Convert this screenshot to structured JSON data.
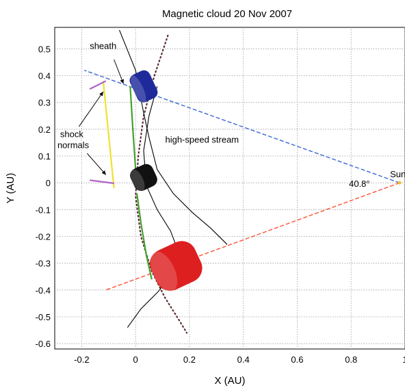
{
  "chart_data": {
    "type": "scatter",
    "title": "Magnetic cloud  20 Nov 2007",
    "xlabel": "X (AU)",
    "ylabel": "Y (AU)",
    "xlim": [
      -0.3,
      1.0
    ],
    "ylim": [
      -0.62,
      0.58
    ],
    "xticks": [
      -0.2,
      0,
      0.2,
      0.4,
      0.6,
      0.8,
      1
    ],
    "xtick_labels": [
      "-0.2",
      "0",
      "0.2",
      "0.4",
      "0.6",
      "0.8",
      "1"
    ],
    "yticks": [
      0.5,
      0.4,
      0.3,
      0.2,
      0.1,
      0,
      -0.1,
      -0.2,
      -0.3,
      -0.4,
      -0.5,
      -0.6
    ],
    "ytick_labels": [
      "0.5",
      "0.4",
      "0.3",
      "0.2",
      "0.1",
      "0",
      "-0.1",
      "-0.2",
      "-0.3",
      "-0.4",
      "-0.5",
      "-0.6"
    ],
    "grid": true,
    "sun": {
      "label": "Sun",
      "x": 0.98,
      "y": 0.0
    },
    "angle_label": "40.8°",
    "series": [
      {
        "kind": "dashed-line",
        "color": "#3a66d8",
        "x": [
          0.98,
          -0.19
        ],
        "y": [
          0.0,
          0.42
        ]
      },
      {
        "kind": "dashed-line",
        "color": "#ff5030",
        "x": [
          0.98,
          -0.11
        ],
        "y": [
          0.0,
          -0.4
        ]
      },
      {
        "kind": "dotted-curve",
        "color": "#5a2f2f",
        "x": [
          0.12,
          0.07,
          0.03,
          0.01,
          0.0,
          0.02,
          0.06,
          0.11,
          0.16,
          0.19
        ],
        "y": [
          0.55,
          0.4,
          0.25,
          0.1,
          -0.05,
          -0.2,
          -0.33,
          -0.43,
          -0.51,
          -0.56
        ]
      },
      {
        "kind": "line",
        "color": "#000000",
        "x": [
          -0.06,
          0.0,
          0.03,
          0.05,
          0.08,
          0.14,
          0.21,
          0.28,
          0.34
        ],
        "y": [
          0.57,
          0.42,
          0.26,
          0.17,
          0.05,
          -0.04,
          -0.11,
          -0.17,
          -0.23
        ]
      },
      {
        "kind": "line",
        "color": "#000000",
        "x": [
          0.08,
          0.05,
          0.03,
          0.04,
          0.08,
          0.13,
          0.16,
          0.14,
          0.08,
          0.02,
          -0.03
        ],
        "y": [
          0.36,
          0.25,
          0.12,
          -0.01,
          -0.1,
          -0.18,
          -0.26,
          -0.34,
          -0.41,
          -0.47,
          -0.54
        ]
      },
      {
        "kind": "line",
        "color": "#44a030",
        "x": [
          -0.02,
          -0.01,
          0.0
        ],
        "y": [
          0.36,
          0.2,
          0.05
        ]
      },
      {
        "kind": "line",
        "color": "#44a030",
        "x": [
          0.005,
          0.02,
          0.04,
          0.06
        ],
        "y": [
          -0.04,
          -0.15,
          -0.27,
          -0.36
        ]
      },
      {
        "kind": "line",
        "color": "#f0e030",
        "x": [
          -0.12,
          -0.08
        ],
        "y": [
          0.38,
          -0.02
        ]
      },
      {
        "kind": "line",
        "color": "#b060c8",
        "x": [
          -0.17,
          -0.11
        ],
        "y": [
          0.35,
          0.38
        ]
      },
      {
        "kind": "line",
        "color": "#b060c8",
        "x": [
          -0.17,
          -0.08
        ],
        "y": [
          0.01,
          -0.002
        ]
      }
    ],
    "clouds": [
      {
        "color": "#1f2a9a",
        "x": 0.03,
        "y": 0.36,
        "rx": 0.04,
        "ry": 0.07
      },
      {
        "color": "#111111",
        "x": 0.03,
        "y": 0.02,
        "rx": 0.045,
        "ry": 0.055
      },
      {
        "color": "#dd1f1f",
        "x": 0.15,
        "y": -0.31,
        "rx": 0.09,
        "ry": 0.1
      }
    ],
    "annotations": [
      {
        "text": "sheath",
        "x": -0.17,
        "y": 0.5
      },
      {
        "text": "shock",
        "x": -0.28,
        "y": 0.17
      },
      {
        "text": "normals",
        "x": -0.29,
        "y": 0.13
      },
      {
        "text": "high-speed stream",
        "x": 0.11,
        "y": 0.15
      }
    ]
  }
}
